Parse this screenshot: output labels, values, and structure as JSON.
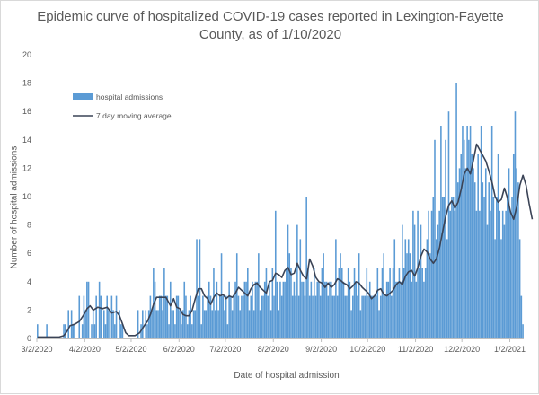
{
  "chart_data": {
    "type": "bar",
    "title_line1": "Epidemic curve of hospitalized COVID-19 cases reported in Lexington-Fayette",
    "title_line2": "County, as of 1/10/2020",
    "xlabel": "Date of hospital admission",
    "ylabel": "Number of hospital admissions",
    "ylim": [
      0,
      20
    ],
    "yticks": [
      "0",
      "2",
      "4",
      "6",
      "8",
      "10",
      "12",
      "14",
      "16",
      "18",
      "20"
    ],
    "x_start": "3/2/2020",
    "x_end": "1/10/2021",
    "xticks": [
      {
        "label": "3/2/2020",
        "day": 0
      },
      {
        "label": "4/2/2020",
        "day": 31
      },
      {
        "label": "5/2/2020",
        "day": 61
      },
      {
        "label": "6/2/2020",
        "day": 92
      },
      {
        "label": "7/2/2020",
        "day": 122
      },
      {
        "label": "8/2/2020",
        "day": 153
      },
      {
        "label": "9/2/2020",
        "day": 184
      },
      {
        "label": "10/2/2020",
        "day": 214
      },
      {
        "label": "11/2/2020",
        "day": 245
      },
      {
        "label": "12/2/2020",
        "day": 275
      },
      {
        "label": "1/2/2021",
        "day": 306
      }
    ],
    "gridlines": false,
    "legend_position": "top-left",
    "series": [
      {
        "name": "hospital admissions",
        "kind": "bar",
        "color": "#5b9bd5"
      },
      {
        "name": "7 day moving average",
        "kind": "line",
        "color": "#3a4356"
      }
    ],
    "values": [
      1,
      0,
      0,
      0,
      0,
      0,
      1,
      0,
      0,
      0,
      0,
      0,
      0,
      0,
      0,
      0,
      0,
      1,
      1,
      0,
      2,
      0,
      2,
      1,
      1,
      0,
      0,
      3,
      0,
      1,
      3,
      2,
      4,
      4,
      0,
      1,
      2,
      1,
      3,
      0,
      4,
      3,
      0,
      2,
      1,
      3,
      2,
      0,
      3,
      2,
      1,
      3,
      0,
      2,
      1,
      1,
      0,
      0,
      0,
      0,
      0,
      0,
      0,
      0,
      0,
      2,
      0,
      1,
      2,
      0,
      2,
      1,
      2,
      3,
      2,
      5,
      4,
      2,
      2,
      3,
      3,
      2,
      5,
      3,
      3,
      1,
      4,
      2,
      2,
      1,
      3,
      3,
      2,
      1,
      2,
      4,
      3,
      1,
      2,
      3,
      1,
      2,
      2,
      7,
      3,
      7,
      1,
      3,
      2,
      2,
      3,
      4,
      3,
      2,
      5,
      2,
      4,
      2,
      3,
      6,
      3,
      2,
      3,
      1,
      4,
      3,
      2,
      3,
      4,
      6,
      3,
      2,
      3,
      3,
      4,
      4,
      5,
      2,
      3,
      4,
      2,
      4,
      4,
      6,
      2,
      3,
      3,
      4,
      5,
      3,
      4,
      2,
      5,
      3,
      9,
      4,
      2,
      4,
      3,
      4,
      4,
      5,
      8,
      6,
      5,
      3,
      4,
      3,
      8,
      3,
      7,
      4,
      4,
      3,
      10,
      5,
      3,
      4,
      3,
      5,
      3,
      4,
      4,
      3,
      5,
      6,
      4,
      4,
      3,
      4,
      4,
      3,
      3,
      7,
      3,
      5,
      6,
      5,
      4,
      3,
      3,
      5,
      4,
      2,
      3,
      5,
      4,
      3,
      6,
      2,
      3,
      3,
      3,
      5,
      3,
      4,
      3,
      3,
      3,
      3,
      5,
      2,
      3,
      5,
      6,
      3,
      4,
      4,
      5,
      3,
      5,
      7,
      4,
      4,
      5,
      4,
      8,
      5,
      7,
      6,
      7,
      6,
      4,
      9,
      8,
      4,
      9,
      5,
      8,
      5,
      4,
      5,
      7,
      9,
      6,
      9,
      10,
      14,
      7,
      8,
      9,
      15,
      10,
      10,
      14,
      7,
      16,
      9,
      10,
      10,
      9,
      18,
      11,
      12,
      13,
      15,
      14,
      12,
      15,
      14,
      15,
      13,
      12,
      11,
      9,
      13,
      9,
      15,
      11,
      10,
      12,
      8,
      11,
      9,
      15,
      10,
      7,
      10,
      13,
      9,
      7,
      9,
      8,
      9,
      10,
      12,
      9,
      10,
      13,
      16,
      12,
      11,
      7,
      3,
      1
    ],
    "moving_average": [
      [
        0,
        0.1
      ],
      [
        14,
        0.1
      ],
      [
        17,
        0.2
      ],
      [
        19,
        0.5
      ],
      [
        21,
        0.9
      ],
      [
        24,
        1.0
      ],
      [
        27,
        1.2
      ],
      [
        30,
        1.7
      ],
      [
        32,
        2.1
      ],
      [
        34,
        2.3
      ],
      [
        36,
        2.0
      ],
      [
        39,
        2.2
      ],
      [
        42,
        2.1
      ],
      [
        45,
        2.2
      ],
      [
        48,
        1.8
      ],
      [
        51,
        1.9
      ],
      [
        53,
        1.6
      ],
      [
        55,
        1.0
      ],
      [
        57,
        0.4
      ],
      [
        59,
        0.2
      ],
      [
        63,
        0.2
      ],
      [
        66,
        0.4
      ],
      [
        69,
        0.9
      ],
      [
        71,
        1.2
      ],
      [
        73,
        1.7
      ],
      [
        75,
        2.4
      ],
      [
        77,
        2.9
      ],
      [
        80,
        2.9
      ],
      [
        83,
        2.9
      ],
      [
        86,
        2.3
      ],
      [
        88,
        2.8
      ],
      [
        90,
        2.2
      ],
      [
        92,
        2.1
      ],
      [
        94,
        1.7
      ],
      [
        96,
        1.6
      ],
      [
        98,
        1.6
      ],
      [
        100,
        2.0
      ],
      [
        102,
        2.8
      ],
      [
        104,
        3.5
      ],
      [
        106,
        3.5
      ],
      [
        108,
        3.0
      ],
      [
        110,
        2.8
      ],
      [
        112,
        2.4
      ],
      [
        114,
        2.9
      ],
      [
        116,
        3.2
      ],
      [
        118,
        3.0
      ],
      [
        120,
        3.1
      ],
      [
        122,
        2.8
      ],
      [
        124,
        3.0
      ],
      [
        126,
        2.9
      ],
      [
        128,
        3.2
      ],
      [
        130,
        3.6
      ],
      [
        132,
        3.4
      ],
      [
        134,
        3.2
      ],
      [
        136,
        3.0
      ],
      [
        138,
        3.5
      ],
      [
        140,
        3.8
      ],
      [
        142,
        3.9
      ],
      [
        144,
        3.6
      ],
      [
        146,
        3.4
      ],
      [
        148,
        3.2
      ],
      [
        150,
        4.0
      ],
      [
        152,
        4.1
      ],
      [
        154,
        4.6
      ],
      [
        156,
        4.5
      ],
      [
        158,
        4.3
      ],
      [
        160,
        4.8
      ],
      [
        162,
        5.0
      ],
      [
        164,
        4.5
      ],
      [
        166,
        4.6
      ],
      [
        168,
        5.3
      ],
      [
        170,
        4.8
      ],
      [
        172,
        4.4
      ],
      [
        174,
        4.2
      ],
      [
        176,
        5.6
      ],
      [
        178,
        5.1
      ],
      [
        180,
        4.3
      ],
      [
        182,
        4.0
      ],
      [
        184,
        3.9
      ],
      [
        186,
        3.6
      ],
      [
        188,
        3.9
      ],
      [
        190,
        3.6
      ],
      [
        192,
        3.8
      ],
      [
        194,
        4.2
      ],
      [
        196,
        4.1
      ],
      [
        198,
        3.9
      ],
      [
        200,
        3.8
      ],
      [
        202,
        3.5
      ],
      [
        204,
        3.7
      ],
      [
        206,
        4.0
      ],
      [
        208,
        3.9
      ],
      [
        210,
        3.6
      ],
      [
        212,
        3.4
      ],
      [
        214,
        3.2
      ],
      [
        216,
        2.8
      ],
      [
        218,
        3.0
      ],
      [
        220,
        3.4
      ],
      [
        222,
        3.5
      ],
      [
        224,
        3.1
      ],
      [
        226,
        3.0
      ],
      [
        228,
        3.2
      ],
      [
        230,
        3.4
      ],
      [
        232,
        3.8
      ],
      [
        234,
        4.0
      ],
      [
        236,
        3.8
      ],
      [
        238,
        4.4
      ],
      [
        240,
        4.7
      ],
      [
        242,
        4.8
      ],
      [
        244,
        4.4
      ],
      [
        246,
        5.0
      ],
      [
        248,
        5.8
      ],
      [
        250,
        6.3
      ],
      [
        252,
        6.1
      ],
      [
        254,
        5.6
      ],
      [
        256,
        5.3
      ],
      [
        258,
        5.6
      ],
      [
        260,
        6.4
      ],
      [
        262,
        7.5
      ],
      [
        264,
        8.6
      ],
      [
        266,
        9.4
      ],
      [
        268,
        9.7
      ],
      [
        270,
        9.2
      ],
      [
        272,
        9.6
      ],
      [
        274,
        10.5
      ],
      [
        276,
        11.6
      ],
      [
        278,
        12.0
      ],
      [
        280,
        11.6
      ],
      [
        282,
        12.6
      ],
      [
        284,
        13.7
      ],
      [
        286,
        13.3
      ],
      [
        288,
        12.9
      ],
      [
        290,
        12.5
      ],
      [
        292,
        11.8
      ],
      [
        294,
        11.0
      ],
      [
        296,
        10.0
      ],
      [
        298,
        9.6
      ],
      [
        300,
        9.8
      ],
      [
        302,
        10.6
      ],
      [
        304,
        9.9
      ],
      [
        306,
        8.9
      ],
      [
        308,
        8.4
      ],
      [
        310,
        9.3
      ],
      [
        312,
        10.8
      ],
      [
        314,
        11.5
      ],
      [
        316,
        10.8
      ],
      [
        318,
        9.5
      ],
      [
        320,
        8.4
      ]
    ]
  }
}
